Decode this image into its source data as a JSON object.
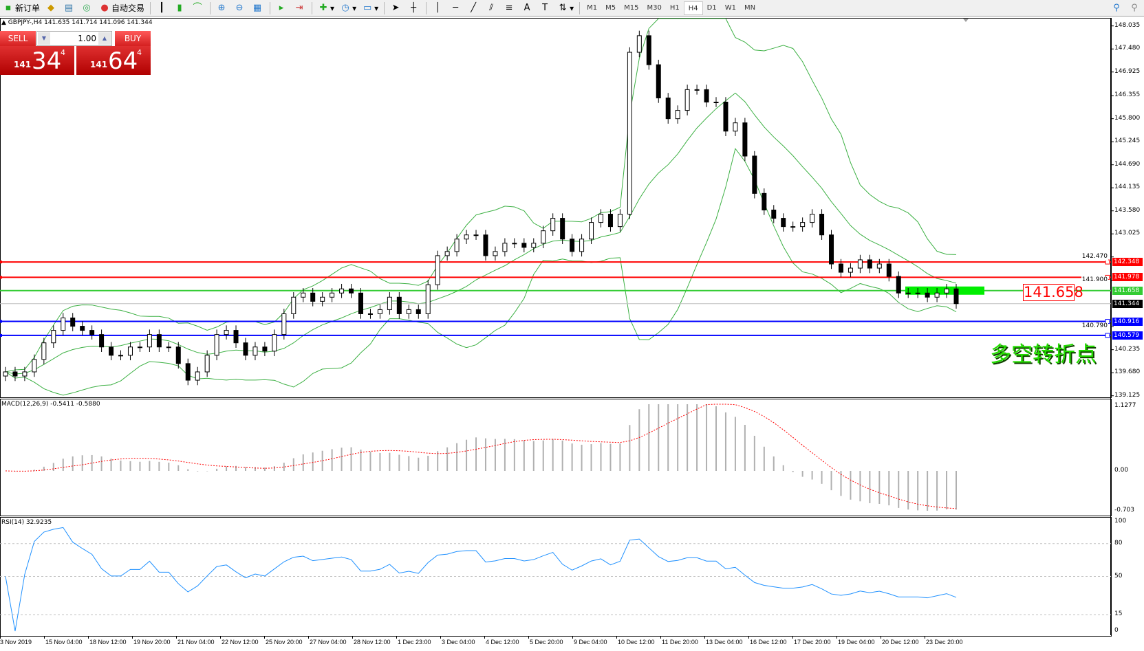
{
  "toolbar": {
    "new_order": "新订单",
    "auto_trading": "自动交易",
    "timeframes": [
      "M1",
      "M5",
      "M15",
      "M30",
      "H1",
      "H4",
      "D1",
      "W1",
      "MN"
    ],
    "active_timeframe": "H4"
  },
  "chart": {
    "header": "GBPJPY-,H4  141.635 141.714 141.096 141.344",
    "symbol": "GBPJPY-",
    "timeframe": "H4"
  },
  "trade_panel": {
    "sell_label": "SELL",
    "buy_label": "BUY",
    "lot": "1.00",
    "sell_prefix": "141",
    "sell_big": "34",
    "sell_sup": "4",
    "buy_prefix": "141",
    "buy_big": "64",
    "buy_sup": "4"
  },
  "price_axis": {
    "ticks": [
      "148.035",
      "147.480",
      "146.925",
      "146.355",
      "145.800",
      "145.245",
      "144.690",
      "144.135",
      "143.580",
      "143.025",
      "142.470",
      "141.900",
      "140.790",
      "140.235",
      "139.680",
      "139.125"
    ]
  },
  "levels": [
    {
      "price": "142.348",
      "color": "#ff0000"
    },
    {
      "price": "141.978",
      "color": "#ff0000"
    },
    {
      "price": "141.658",
      "color": "#33cc33"
    },
    {
      "price": "141.344",
      "color": "#000000",
      "bid": true
    },
    {
      "price": "140.916",
      "color": "#0000ff"
    },
    {
      "price": "140.579",
      "color": "#0000ff"
    }
  ],
  "annotation": {
    "price_label": "141.658",
    "text": "多空转折点",
    "highlight_color": "#00ee00"
  },
  "macd": {
    "title": "MACD(12,26,9) -0.5411 -0.5880",
    "axis": [
      "1.1277",
      "0.00",
      "-0.703"
    ]
  },
  "rsi": {
    "title": "RSI(14) 32.9235",
    "axis": [
      "100",
      "80",
      "50",
      "15",
      "0"
    ]
  },
  "time_axis": [
    "3 Nov 2019",
    "15 Nov 04:00",
    "18 Nov 12:00",
    "19 Nov 20:00",
    "21 Nov 04:00",
    "22 Nov 12:00",
    "25 Nov 20:00",
    "27 Nov 04:00",
    "28 Nov 12:00",
    "1 Dec 23:00",
    "3 Dec 04:00",
    "4 Dec 12:00",
    "5 Dec 20:00",
    "9 Dec 04:00",
    "10 Dec 12:00",
    "11 Dec 20:00",
    "13 Dec 04:00",
    "16 Dec 12:00",
    "17 Dec 20:00",
    "19 Dec 04:00",
    "20 Dec 12:00",
    "23 Dec 20:00"
  ],
  "chart_data": {
    "type": "candlestick",
    "closes": [
      139.7,
      139.6,
      139.7,
      140.0,
      140.4,
      140.7,
      141.0,
      140.8,
      140.7,
      140.6,
      140.3,
      140.1,
      140.1,
      140.3,
      140.3,
      140.6,
      140.3,
      140.3,
      139.9,
      139.5,
      139.7,
      140.1,
      140.6,
      140.7,
      140.4,
      140.1,
      140.3,
      140.2,
      140.6,
      141.1,
      141.5,
      141.6,
      141.4,
      141.5,
      141.6,
      141.7,
      141.6,
      141.1,
      141.1,
      141.2,
      141.5,
      141.1,
      141.2,
      141.1,
      141.8,
      142.5,
      142.6,
      142.9,
      143.0,
      143.0,
      142.5,
      142.6,
      142.8,
      142.8,
      142.7,
      142.8,
      143.1,
      143.4,
      142.9,
      142.6,
      142.9,
      143.3,
      143.5,
      143.2,
      143.5,
      147.4,
      147.8,
      147.1,
      146.3,
      145.8,
      146.0,
      146.5,
      146.5,
      146.2,
      146.2,
      145.5,
      145.7,
      144.9,
      144.0,
      143.6,
      143.4,
      143.2,
      143.2,
      143.3,
      143.5,
      143.0,
      142.3,
      142.1,
      142.2,
      142.4,
      142.2,
      142.3,
      142.0,
      141.6,
      141.6,
      141.6,
      141.5,
      141.6,
      141.7,
      141.344
    ],
    "price_range": [
      139.125,
      148.035
    ]
  }
}
